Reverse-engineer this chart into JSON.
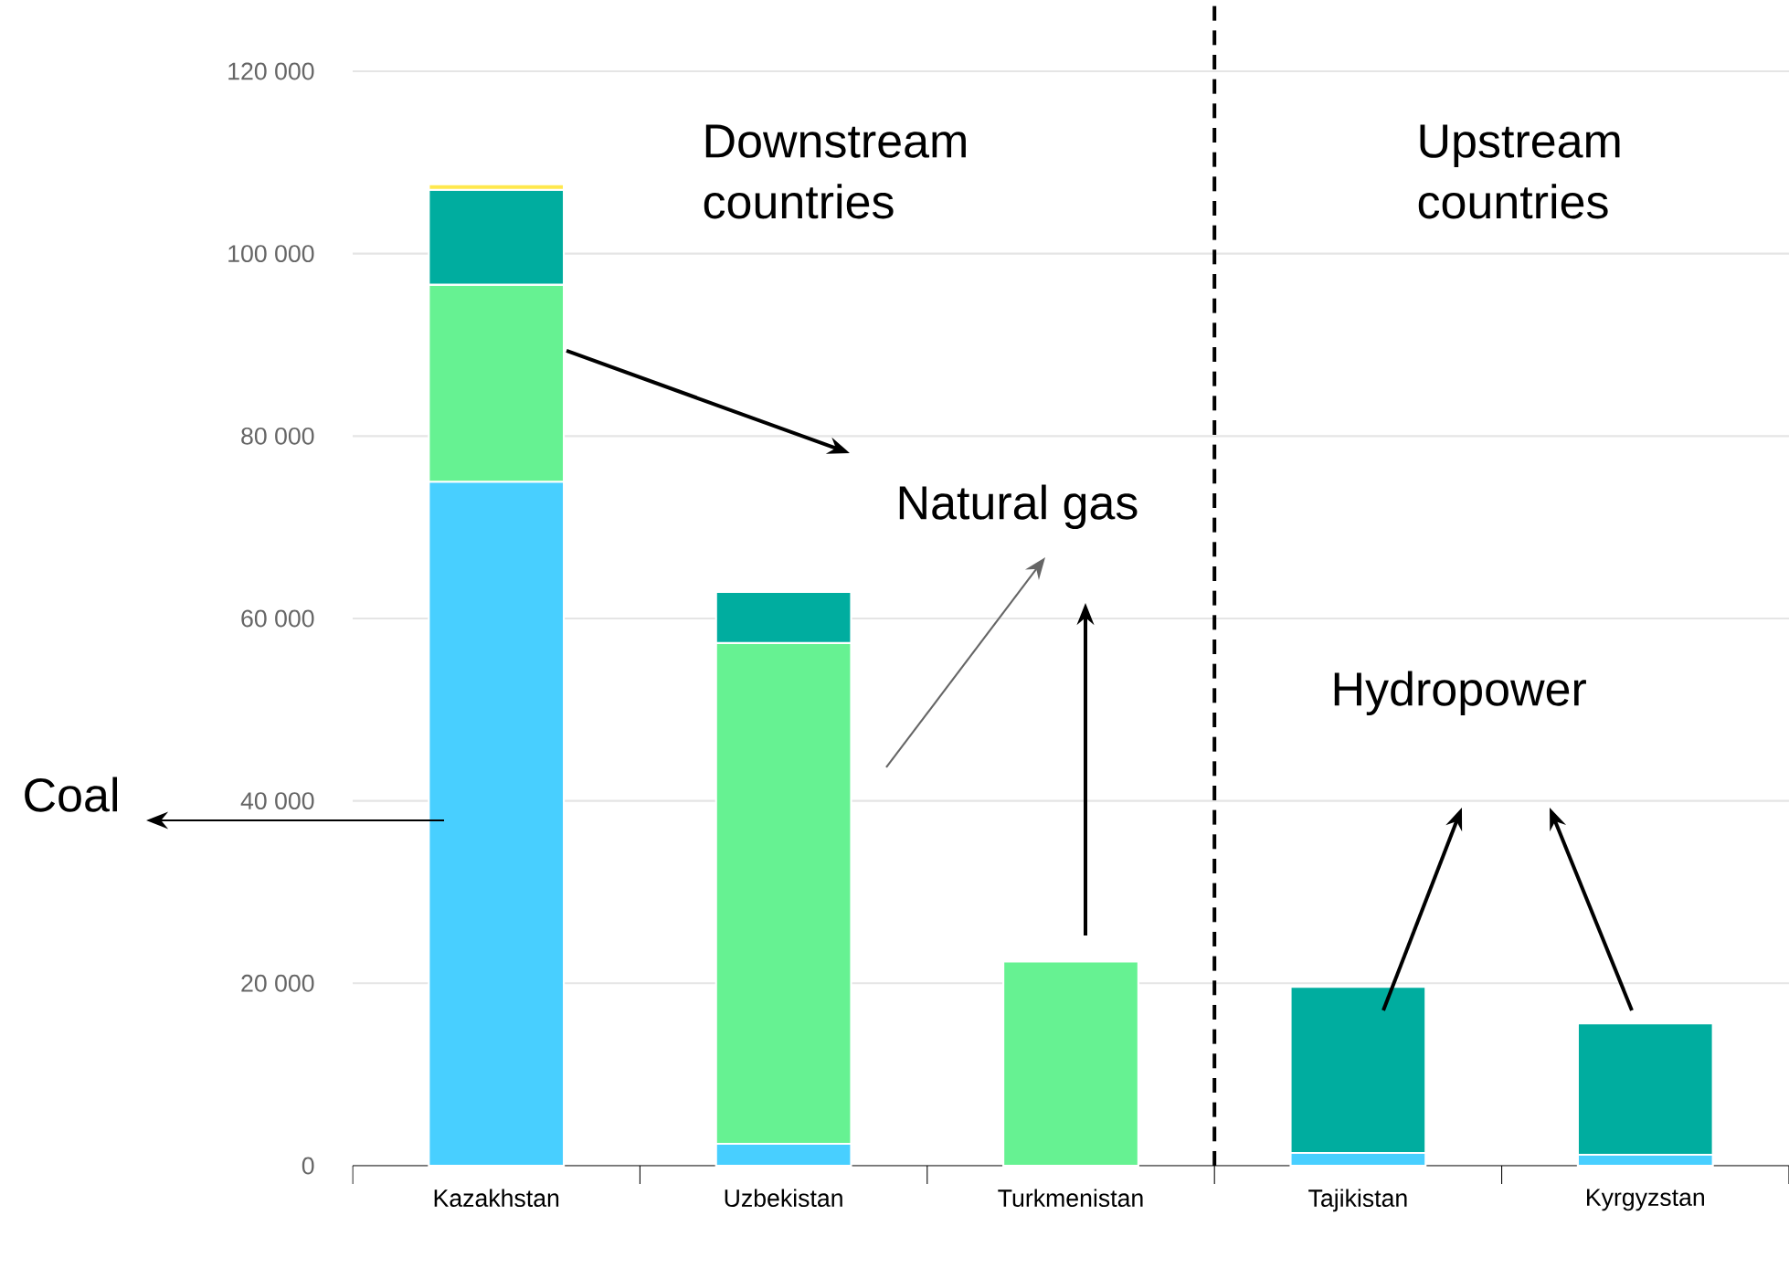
{
  "chart_data": {
    "type": "bar",
    "stacked": true,
    "categories": [
      "Kazakhstan",
      "Uzbekistan",
      "Turkmenistan",
      "Tajikistan",
      "Kyrgyzstan"
    ],
    "series": [
      {
        "color": "#48cfff",
        "values": [
          75000,
          2400,
          null,
          1400,
          1200
        ]
      },
      {
        "color": "#66f292",
        "values": [
          21600,
          54900,
          22400,
          null,
          null
        ]
      },
      {
        "color": "#00ad9f",
        "values": [
          10400,
          5600,
          null,
          18200,
          14400
        ]
      },
      {
        "color": "#ffe84d",
        "values": [
          600,
          null,
          null,
          null,
          null
        ]
      }
    ],
    "ylim": [
      0,
      120000
    ],
    "yticks": [
      {
        "value": 0,
        "label": "0"
      },
      {
        "value": 20000,
        "label": "20 000"
      },
      {
        "value": 40000,
        "label": "40 000"
      },
      {
        "value": 60000,
        "label": "60 000"
      },
      {
        "value": 80000,
        "label": "80 000"
      },
      {
        "value": 100000,
        "label": "100 000"
      },
      {
        "value": 120000,
        "label": "120 000"
      }
    ],
    "grid": "y",
    "annotations": [
      "Downstream countries",
      "Upstream countries",
      "Natural gas",
      "Hydropower",
      "Coal"
    ]
  }
}
